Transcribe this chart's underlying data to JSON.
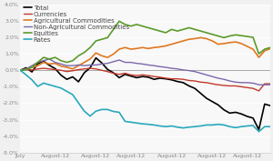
{
  "n_points": 44,
  "series": {
    "Total": {
      "color": "#000000",
      "linewidth": 1.2,
      "values": [
        0.0,
        0.15,
        -0.1,
        0.4,
        0.55,
        0.3,
        0.1,
        -0.3,
        -0.55,
        -0.4,
        -0.7,
        -0.15,
        0.15,
        0.75,
        0.45,
        0.05,
        -0.15,
        -0.45,
        -0.25,
        -0.35,
        -0.45,
        -0.38,
        -0.42,
        -0.55,
        -0.48,
        -0.52,
        -0.58,
        -0.68,
        -0.75,
        -0.95,
        -1.1,
        -1.4,
        -1.7,
        -1.9,
        -2.1,
        -2.4,
        -2.6,
        -2.55,
        -2.65,
        -2.8,
        -2.9,
        -3.6,
        -2.05,
        -2.15
      ]
    },
    "Currencies": {
      "color": "#c0392b",
      "linewidth": 1.0,
      "values": [
        0.0,
        0.05,
        0.02,
        0.08,
        0.12,
        0.08,
        0.04,
        0.0,
        -0.08,
        -0.03,
        0.04,
        0.08,
        0.12,
        0.08,
        0.0,
        -0.08,
        -0.18,
        -0.25,
        -0.18,
        -0.28,
        -0.32,
        -0.28,
        -0.32,
        -0.38,
        -0.42,
        -0.48,
        -0.52,
        -0.52,
        -0.55,
        -0.62,
        -0.65,
        -0.72,
        -0.75,
        -0.82,
        -0.88,
        -0.92,
        -0.95,
        -0.95,
        -1.0,
        -1.05,
        -1.1,
        -1.25,
        -0.82,
        -0.82
      ]
    },
    "Agricultural Commodities": {
      "color": "#e07820",
      "linewidth": 1.2,
      "values": [
        0.0,
        0.08,
        0.18,
        0.28,
        0.48,
        0.38,
        0.42,
        0.25,
        0.18,
        0.08,
        0.28,
        0.48,
        0.68,
        1.05,
        0.88,
        0.78,
        0.98,
        1.28,
        1.38,
        1.28,
        1.32,
        1.38,
        1.32,
        1.38,
        1.42,
        1.48,
        1.58,
        1.68,
        1.78,
        1.88,
        1.92,
        1.98,
        1.92,
        1.78,
        1.58,
        1.62,
        1.68,
        1.72,
        1.62,
        1.45,
        1.28,
        0.78,
        1.18,
        1.32
      ]
    },
    "Non-Agricultural Commodities": {
      "color": "#7b68aa",
      "linewidth": 1.0,
      "values": [
        0.0,
        0.08,
        0.28,
        0.48,
        0.58,
        0.68,
        0.48,
        0.38,
        0.28,
        0.28,
        0.32,
        0.28,
        0.32,
        0.32,
        0.38,
        0.42,
        0.52,
        0.62,
        0.48,
        0.48,
        0.42,
        0.38,
        0.32,
        0.28,
        0.22,
        0.18,
        0.12,
        0.08,
        0.02,
        -0.02,
        -0.08,
        -0.18,
        -0.28,
        -0.38,
        -0.48,
        -0.55,
        -0.65,
        -0.72,
        -0.75,
        -0.75,
        -0.78,
        -0.88,
        -0.88,
        -0.88
      ]
    },
    "Equities": {
      "color": "#5a9a2a",
      "linewidth": 1.2,
      "values": [
        0.0,
        0.04,
        0.18,
        0.48,
        0.78,
        0.68,
        0.78,
        0.58,
        0.48,
        0.58,
        0.88,
        1.08,
        1.38,
        1.78,
        1.88,
        1.98,
        2.48,
        2.98,
        2.78,
        2.68,
        2.78,
        2.68,
        2.58,
        2.48,
        2.38,
        2.28,
        2.48,
        2.38,
        2.48,
        2.58,
        2.48,
        2.38,
        2.28,
        2.18,
        2.08,
        1.98,
        2.08,
        2.15,
        2.1,
        2.05,
        2.0,
        1.0,
        1.28,
        1.38
      ]
    },
    "Rates": {
      "color": "#29a8bb",
      "linewidth": 1.2,
      "values": [
        0.0,
        -0.28,
        -0.58,
        -0.98,
        -0.78,
        -0.88,
        -0.98,
        -1.08,
        -1.28,
        -1.48,
        -1.98,
        -2.48,
        -2.78,
        -2.48,
        -2.38,
        -2.38,
        -2.5,
        -2.55,
        -3.1,
        -3.15,
        -3.2,
        -3.25,
        -3.28,
        -3.32,
        -3.38,
        -3.42,
        -3.38,
        -3.45,
        -3.5,
        -3.45,
        -3.42,
        -3.38,
        -3.32,
        -3.32,
        -3.28,
        -3.32,
        -3.42,
        -3.48,
        -3.42,
        -3.38,
        -3.35,
        -3.72,
        -3.42,
        -3.42
      ]
    }
  },
  "ylim": [
    -5.0,
    4.0
  ],
  "yticks": [
    -5.0,
    -4.0,
    -3.0,
    -2.0,
    -1.0,
    0.0,
    1.0,
    2.0,
    3.0,
    4.0
  ],
  "tick_positions": [
    0,
    6,
    13,
    19,
    26,
    33,
    39
  ],
  "tick_labels": [
    "July",
    "August-12",
    "August-12",
    "August-12",
    "August-12",
    "August-12",
    "August-12"
  ],
  "bg_color": "#f0f0f0",
  "plot_bg_color": "#f8f8f8",
  "grid_color": "#ffffff",
  "zero_line_color": "#aaaaaa",
  "legend_fontsize": 5.0,
  "tick_fontsize": 4.5,
  "tick_color": "#888888"
}
